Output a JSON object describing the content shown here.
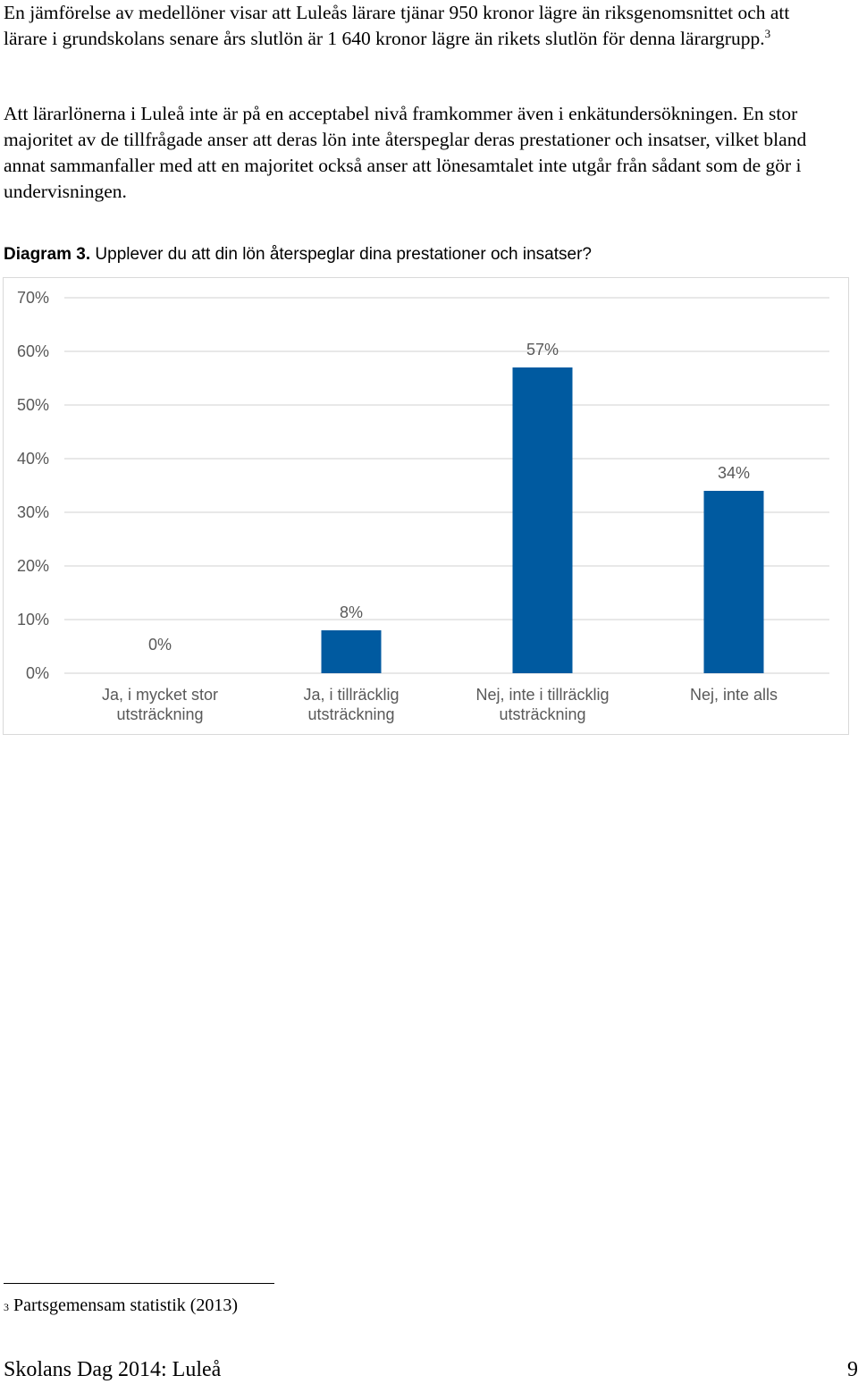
{
  "paragraphs": [
    {
      "text": "En jämförelse av medellöner visar att Luleås lärare tjänar 950 kronor lägre än riksgenom­snittet och att lärare i grundskolans senare års slutlön är 1 640 kronor lägre än rikets slutlön för denna lärargrupp.",
      "footnote_ref": "3"
    },
    {
      "text": "Att lärarlönerna i Luleå inte är på en acceptabel nivå framkommer även i enkätundersök­ningen. En stor majoritet av de tillfrågade anser att deras lön inte återspeglar deras prestationer och insatser, vilket bland annat sammanfaller med att en majoritet också anser att lönesamtalet inte utgår från sådant som de gör i undervisningen."
    }
  ],
  "caption": {
    "label": "Diagram 3.",
    "text": " Upplever du att din lön återspeglar dina prestationer och insatser?"
  },
  "chart_data": {
    "type": "bar",
    "categories": [
      [
        "Ja, i mycket stor",
        "utsträckning"
      ],
      [
        "Ja, i tillräcklig",
        "utsträckning"
      ],
      [
        "Nej, inte i tillräcklig",
        "utsträckning"
      ],
      [
        "Nej, inte alls"
      ]
    ],
    "values": [
      0,
      8,
      57,
      34
    ],
    "data_labels": [
      "0%",
      "8%",
      "57%",
      "34%"
    ],
    "y_ticks": [
      "0%",
      "10%",
      "20%",
      "30%",
      "40%",
      "50%",
      "60%",
      "70%"
    ],
    "ylim": [
      0,
      70
    ],
    "grid": true,
    "legend": "none",
    "bar_color": "#005aa0",
    "grid_color": "#d9d9d9",
    "text_color": "#595959"
  },
  "footnote": {
    "number": "3",
    "text": " Partsgemensam statistik (2013)"
  },
  "footer": {
    "left": "Skolans Dag 2014: Luleå",
    "page_number": "9"
  }
}
